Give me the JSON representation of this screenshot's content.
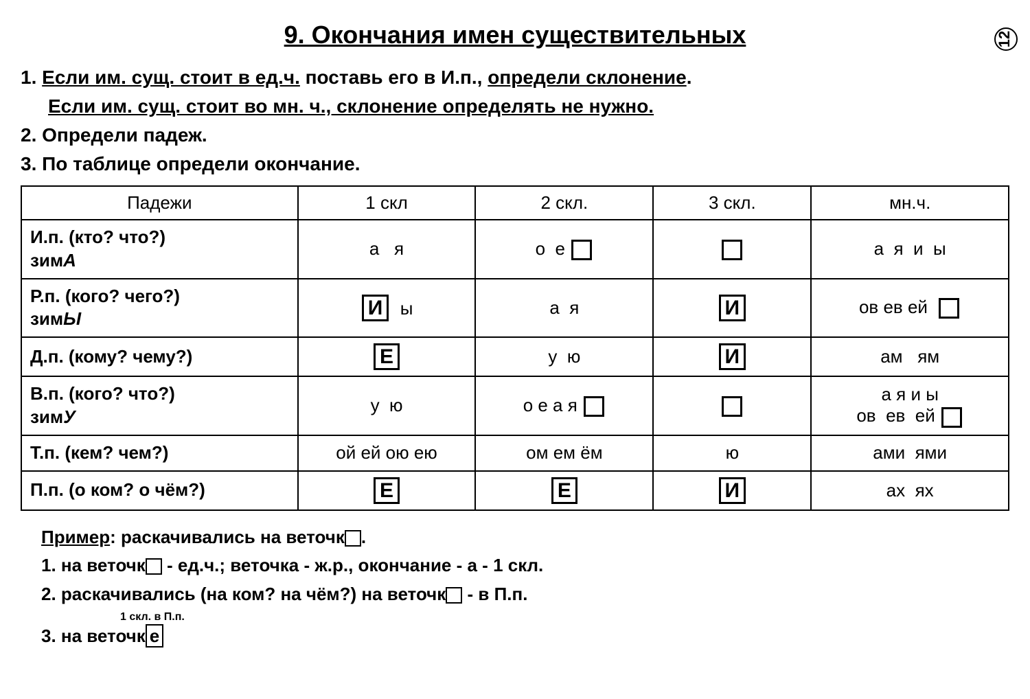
{
  "page_number": "12",
  "title": "9. Окончания имен существительных",
  "instructions": {
    "line1_num": "1.",
    "line1a": "Если им. сущ. стоит в ед.ч.",
    "line1b": " поставь его в И.п., ",
    "line1c": "определи склонение",
    "line1d": ".",
    "line2": "Если им. сущ. стоит во мн. ч., склонение определять не нужно.",
    "line3": "2. Определи падеж.",
    "line4": "3. По таблице определи окончание."
  },
  "table": {
    "headers": [
      "Падежи",
      "1 скл",
      "2 скл.",
      "3 скл.",
      "мн.ч."
    ],
    "rows": [
      {
        "case": "И.п. (кто? что?)<br>зим<i>А</i>",
        "c1": "а&nbsp;&nbsp;&nbsp;я",
        "c2": "о&nbsp;&nbsp;е&nbsp;<span class=\"empty-box\"></span>",
        "c3": "<span class=\"empty-box\"></span>",
        "c4": "а&nbsp;&nbsp;я&nbsp;&nbsp;и&nbsp;&nbsp;ы"
      },
      {
        "case": "Р.п. (кого? чего?)<br>зим<i>Ы</i>",
        "c1": "<span class=\"boxed\">И</span>&nbsp;&nbsp;ы",
        "c2": "а&nbsp;&nbsp;я",
        "c3": "<span class=\"boxed\">И</span>",
        "c4": "ов&nbsp;ев&nbsp;ей&nbsp;&nbsp;<span class=\"empty-box\"></span>"
      },
      {
        "case": "Д.п. (кому? чему?)",
        "c1": "<span class=\"boxed\">Е</span>",
        "c2": "у&nbsp;&nbsp;ю",
        "c3": "<span class=\"boxed\">И</span>",
        "c4": "ам&nbsp;&nbsp;&nbsp;ям"
      },
      {
        "case": "В.п. (кого? что?)<br>зим<i>У</i>",
        "c1": "у&nbsp;&nbsp;ю",
        "c2": "о&nbsp;е&nbsp;а&nbsp;я&nbsp;<span class=\"empty-box\"></span>",
        "c3": "<span class=\"empty-box\"></span>",
        "c4": "а&nbsp;я&nbsp;и&nbsp;ы<br>ов&nbsp;&nbsp;ев&nbsp;&nbsp;ей&nbsp;<span class=\"empty-box\"></span>"
      },
      {
        "case": "Т.п. (кем? чем?)",
        "c1": "ой&nbsp;ей&nbsp;ою&nbsp;ею",
        "c2": "ом&nbsp;ем&nbsp;ём",
        "c3": "ю",
        "c4": "ами&nbsp;&nbsp;ями"
      },
      {
        "case": "П.п. (о ком? о чём?)",
        "c1": "<span class=\"boxed\">Е</span>",
        "c2": "<span class=\"boxed\">Е</span>",
        "c3": "<span class=\"boxed\">И</span>",
        "c4": "ах&nbsp;&nbsp;ях"
      }
    ]
  },
  "example": {
    "heading": "Пример",
    "intro": ": раскачивались на веточк",
    "l1": "1. на веточк",
    "l1b": " - ед.ч.; веточка - ж.р., окончание - а - 1 скл.",
    "l2": "2. раскачивались (на ком? на чём?) на веточк",
    "l2b": " - в П.п.",
    "note": "1 скл. в П.п.",
    "l3a": "3. на веточк",
    "l3b": "е"
  },
  "styling": {
    "background_color": "#ffffff",
    "text_color": "#000000",
    "border_color": "#000000",
    "title_fontsize": 36,
    "body_fontsize": 28,
    "table_fontsize": 26,
    "font_family": "Arial"
  }
}
